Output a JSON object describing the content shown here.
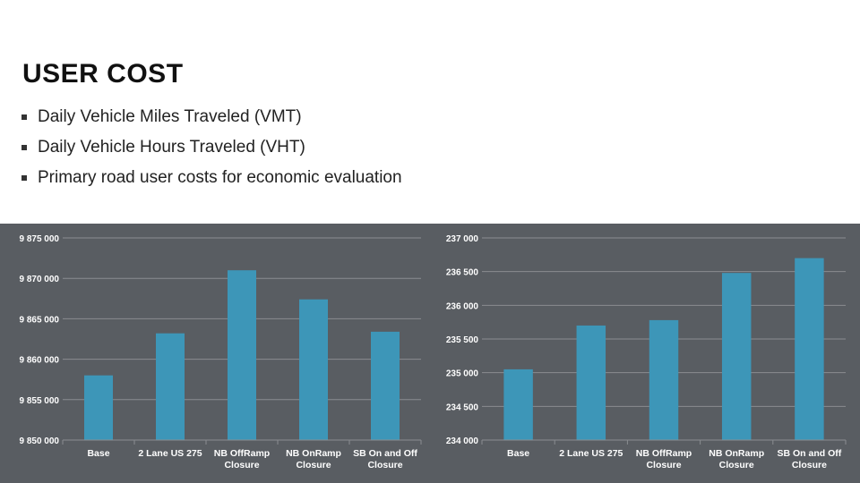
{
  "slide": {
    "title": "USER COST",
    "bullets": [
      "Daily Vehicle Miles Traveled (VMT)",
      "Daily Vehicle Hours Traveled (VHT)",
      "Primary road user costs for economic evaluation"
    ]
  },
  "colors": {
    "chart_background": "#595d62",
    "bar": "#3d96b8",
    "gridline": "#8a8d91",
    "axis_text": "#ffffff"
  },
  "chart_data": [
    {
      "type": "bar",
      "title": "",
      "xlabel": "",
      "ylabel": "",
      "categories": [
        "Base",
        "2 Lane US 275",
        "NB OffRamp Closure",
        "NB OnRamp Closure",
        "SB On and Off Closure"
      ],
      "values": [
        9858000,
        9863200,
        9871000,
        9867400,
        9863400
      ],
      "ylim": [
        9850000,
        9875000
      ],
      "yticks": [
        9850000,
        9855000,
        9860000,
        9865000,
        9870000,
        9875000
      ],
      "ytick_labels": [
        "9 850 000",
        "9 855 000",
        "9 860 000",
        "9 865 000",
        "9 870 000",
        "9 875 000"
      ],
      "grid": true
    },
    {
      "type": "bar",
      "title": "",
      "xlabel": "",
      "ylabel": "",
      "categories": [
        "Base",
        "2 Lane US 275",
        "NB OffRamp Closure",
        "NB OnRamp Closure",
        "SB On and Off Closure"
      ],
      "values": [
        235050,
        235700,
        235780,
        236480,
        236700
      ],
      "ylim": [
        234000,
        237000
      ],
      "yticks": [
        234000,
        234500,
        235000,
        235500,
        236000,
        236500,
        237000
      ],
      "ytick_labels": [
        "234 000",
        "234 500",
        "235 000",
        "235 500",
        "236 000",
        "236 500",
        "237 000"
      ],
      "grid": true
    }
  ]
}
